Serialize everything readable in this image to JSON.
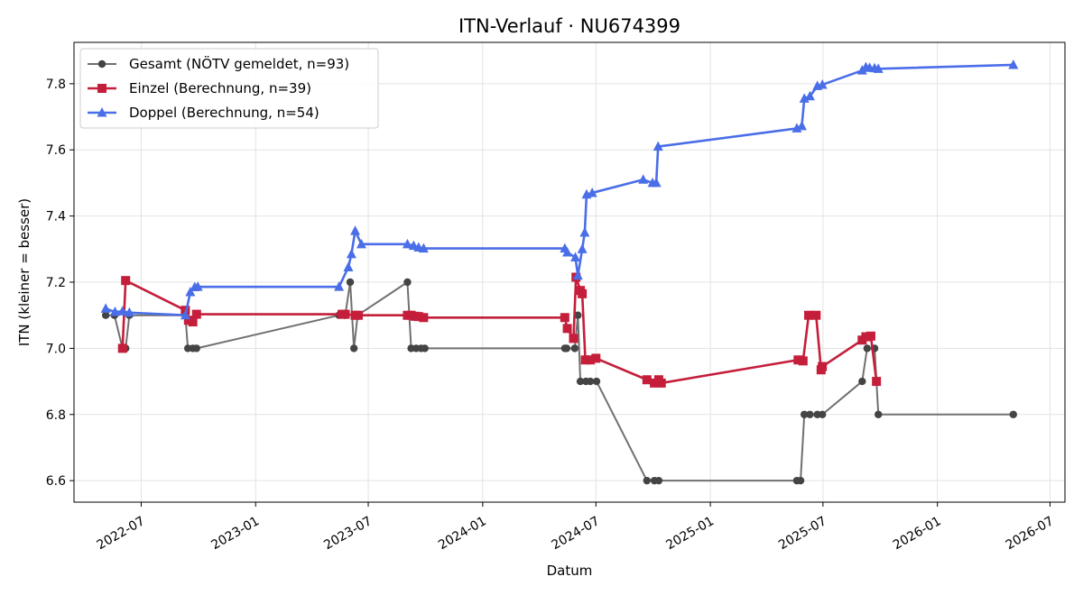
{
  "chart_data": {
    "type": "line",
    "title": "ITN-Verlauf · NU674399",
    "xlabel": "Datum",
    "ylabel": "ITN  (kleiner = besser)",
    "xlim": [
      "2022-03-15",
      "2026-07-25"
    ],
    "ylim": [
      6.535,
      7.925
    ],
    "x_ticks": [
      "2022-07-01",
      "2023-01-01",
      "2023-07-01",
      "2024-01-01",
      "2024-07-01",
      "2025-01-01",
      "2025-07-01",
      "2026-01-01",
      "2026-07-01"
    ],
    "x_tick_labels": [
      "2022-07",
      "2023-01",
      "2023-07",
      "2024-01",
      "2024-07",
      "2025-01",
      "2025-07",
      "2026-01",
      "2026-07"
    ],
    "y_ticks": [
      6.6,
      6.8,
      7.0,
      7.2,
      7.4,
      7.6,
      7.8
    ],
    "y_tick_labels": [
      "6.6",
      "6.8",
      "7.0",
      "7.2",
      "7.4",
      "7.6",
      "7.8"
    ],
    "grid": true,
    "legend_position": "top-left",
    "series": [
      {
        "name": "Gesamt (NÖTV gemeldet, n=93)",
        "color": "#707070",
        "marker_color": "#444444",
        "marker": "circle",
        "points": [
          [
            "2022-05-05",
            7.1
          ],
          [
            "2022-05-19",
            7.1
          ],
          [
            "2022-06-01",
            7.0
          ],
          [
            "2022-06-06",
            7.0
          ],
          [
            "2022-06-12",
            7.1
          ],
          [
            "2022-09-10",
            7.1
          ],
          [
            "2022-09-14",
            7.0
          ],
          [
            "2022-09-22",
            7.0
          ],
          [
            "2022-09-28",
            7.0
          ],
          [
            "2023-05-15",
            7.1
          ],
          [
            "2023-05-25",
            7.1
          ],
          [
            "2023-06-02",
            7.2
          ],
          [
            "2023-06-08",
            7.0
          ],
          [
            "2023-06-14",
            7.1
          ],
          [
            "2023-09-02",
            7.2
          ],
          [
            "2023-09-08",
            7.0
          ],
          [
            "2023-09-16",
            7.0
          ],
          [
            "2023-09-24",
            7.0
          ],
          [
            "2023-09-30",
            7.0
          ],
          [
            "2024-05-12",
            7.0
          ],
          [
            "2024-05-15",
            7.0
          ],
          [
            "2024-05-28",
            7.0
          ],
          [
            "2024-06-02",
            7.1
          ],
          [
            "2024-06-06",
            6.9
          ],
          [
            "2024-06-15",
            6.9
          ],
          [
            "2024-06-22",
            6.9
          ],
          [
            "2024-07-02",
            6.9
          ],
          [
            "2024-09-21",
            6.6
          ],
          [
            "2024-10-03",
            6.6
          ],
          [
            "2024-10-10",
            6.6
          ],
          [
            "2025-05-20",
            6.6
          ],
          [
            "2025-05-26",
            6.6
          ],
          [
            "2025-06-01",
            6.8
          ],
          [
            "2025-06-10",
            6.8
          ],
          [
            "2025-06-22",
            6.8
          ],
          [
            "2025-06-30",
            6.8
          ],
          [
            "2025-09-02",
            6.9
          ],
          [
            "2025-09-10",
            7.0
          ],
          [
            "2025-09-22",
            7.0
          ],
          [
            "2025-09-28",
            6.8
          ],
          [
            "2026-05-03",
            6.8
          ]
        ]
      },
      {
        "name": "Einzel (Berechnung, n=39)",
        "color": "#c41e3a",
        "marker_color": "#c41e3a",
        "marker": "square",
        "points": [
          [
            "2022-06-01",
            7.0
          ],
          [
            "2022-06-06",
            7.205
          ],
          [
            "2022-09-10",
            7.115
          ],
          [
            "2022-09-15",
            7.085
          ],
          [
            "2022-09-22",
            7.08
          ],
          [
            "2022-09-28",
            7.103
          ],
          [
            "2023-05-20",
            7.103
          ],
          [
            "2023-05-25",
            7.103
          ],
          [
            "2023-06-10",
            7.1
          ],
          [
            "2023-06-15",
            7.1
          ],
          [
            "2023-09-02",
            7.1
          ],
          [
            "2023-09-08",
            7.1
          ],
          [
            "2023-09-14",
            7.097
          ],
          [
            "2023-09-20",
            7.096
          ],
          [
            "2023-09-28",
            7.093
          ],
          [
            "2024-05-12",
            7.093
          ],
          [
            "2024-05-16",
            7.06
          ],
          [
            "2024-05-26",
            7.03
          ],
          [
            "2024-05-30",
            7.215
          ],
          [
            "2024-06-06",
            7.175
          ],
          [
            "2024-06-09",
            7.165
          ],
          [
            "2024-06-14",
            6.965
          ],
          [
            "2024-06-22",
            6.965
          ],
          [
            "2024-07-01",
            6.97
          ],
          [
            "2024-09-21",
            6.905
          ],
          [
            "2024-10-03",
            6.895
          ],
          [
            "2024-10-10",
            6.905
          ],
          [
            "2024-10-14",
            6.895
          ],
          [
            "2025-05-22",
            6.965
          ],
          [
            "2025-05-30",
            6.962
          ],
          [
            "2025-06-08",
            7.1
          ],
          [
            "2025-06-20",
            7.1
          ],
          [
            "2025-06-28",
            6.935
          ],
          [
            "2025-06-30",
            6.945
          ],
          [
            "2025-09-02",
            7.025
          ],
          [
            "2025-09-08",
            7.035
          ],
          [
            "2025-09-16",
            7.037
          ],
          [
            "2025-09-25",
            6.9
          ]
        ]
      },
      {
        "name": "Doppel (Berechnung, n=54)",
        "color": "#4a6ee8",
        "marker_color": "#4a6ee8",
        "marker": "triangle",
        "points": [
          [
            "2022-05-05",
            7.12
          ],
          [
            "2022-05-20",
            7.11
          ],
          [
            "2022-06-01",
            7.112
          ],
          [
            "2022-06-12",
            7.108
          ],
          [
            "2022-09-10",
            7.1
          ],
          [
            "2022-09-18",
            7.17
          ],
          [
            "2022-09-25",
            7.185
          ],
          [
            "2022-09-30",
            7.186
          ],
          [
            "2023-05-15",
            7.186
          ],
          [
            "2023-05-30",
            7.245
          ],
          [
            "2023-06-04",
            7.285
          ],
          [
            "2023-06-10",
            7.355
          ],
          [
            "2023-06-20",
            7.315
          ],
          [
            "2023-09-02",
            7.315
          ],
          [
            "2023-09-12",
            7.31
          ],
          [
            "2023-09-20",
            7.305
          ],
          [
            "2023-09-28",
            7.302
          ],
          [
            "2024-05-12",
            7.302
          ],
          [
            "2024-05-16",
            7.29
          ],
          [
            "2024-05-29",
            7.275
          ],
          [
            "2024-06-02",
            7.22
          ],
          [
            "2024-06-09",
            7.3
          ],
          [
            "2024-06-13",
            7.35
          ],
          [
            "2024-06-16",
            7.465
          ],
          [
            "2024-06-25",
            7.47
          ],
          [
            "2024-09-15",
            7.51
          ],
          [
            "2024-09-30",
            7.5
          ],
          [
            "2024-10-06",
            7.5
          ],
          [
            "2024-10-09",
            7.61
          ],
          [
            "2025-05-20",
            7.665
          ],
          [
            "2025-05-28",
            7.672
          ],
          [
            "2025-06-01",
            7.755
          ],
          [
            "2025-06-10",
            7.762
          ],
          [
            "2025-06-22",
            7.793
          ],
          [
            "2025-06-30",
            7.797
          ],
          [
            "2025-09-02",
            7.84
          ],
          [
            "2025-09-08",
            7.85
          ],
          [
            "2025-09-14",
            7.848
          ],
          [
            "2025-09-22",
            7.847
          ],
          [
            "2025-09-28",
            7.845
          ],
          [
            "2026-05-03",
            7.857
          ]
        ]
      }
    ]
  }
}
